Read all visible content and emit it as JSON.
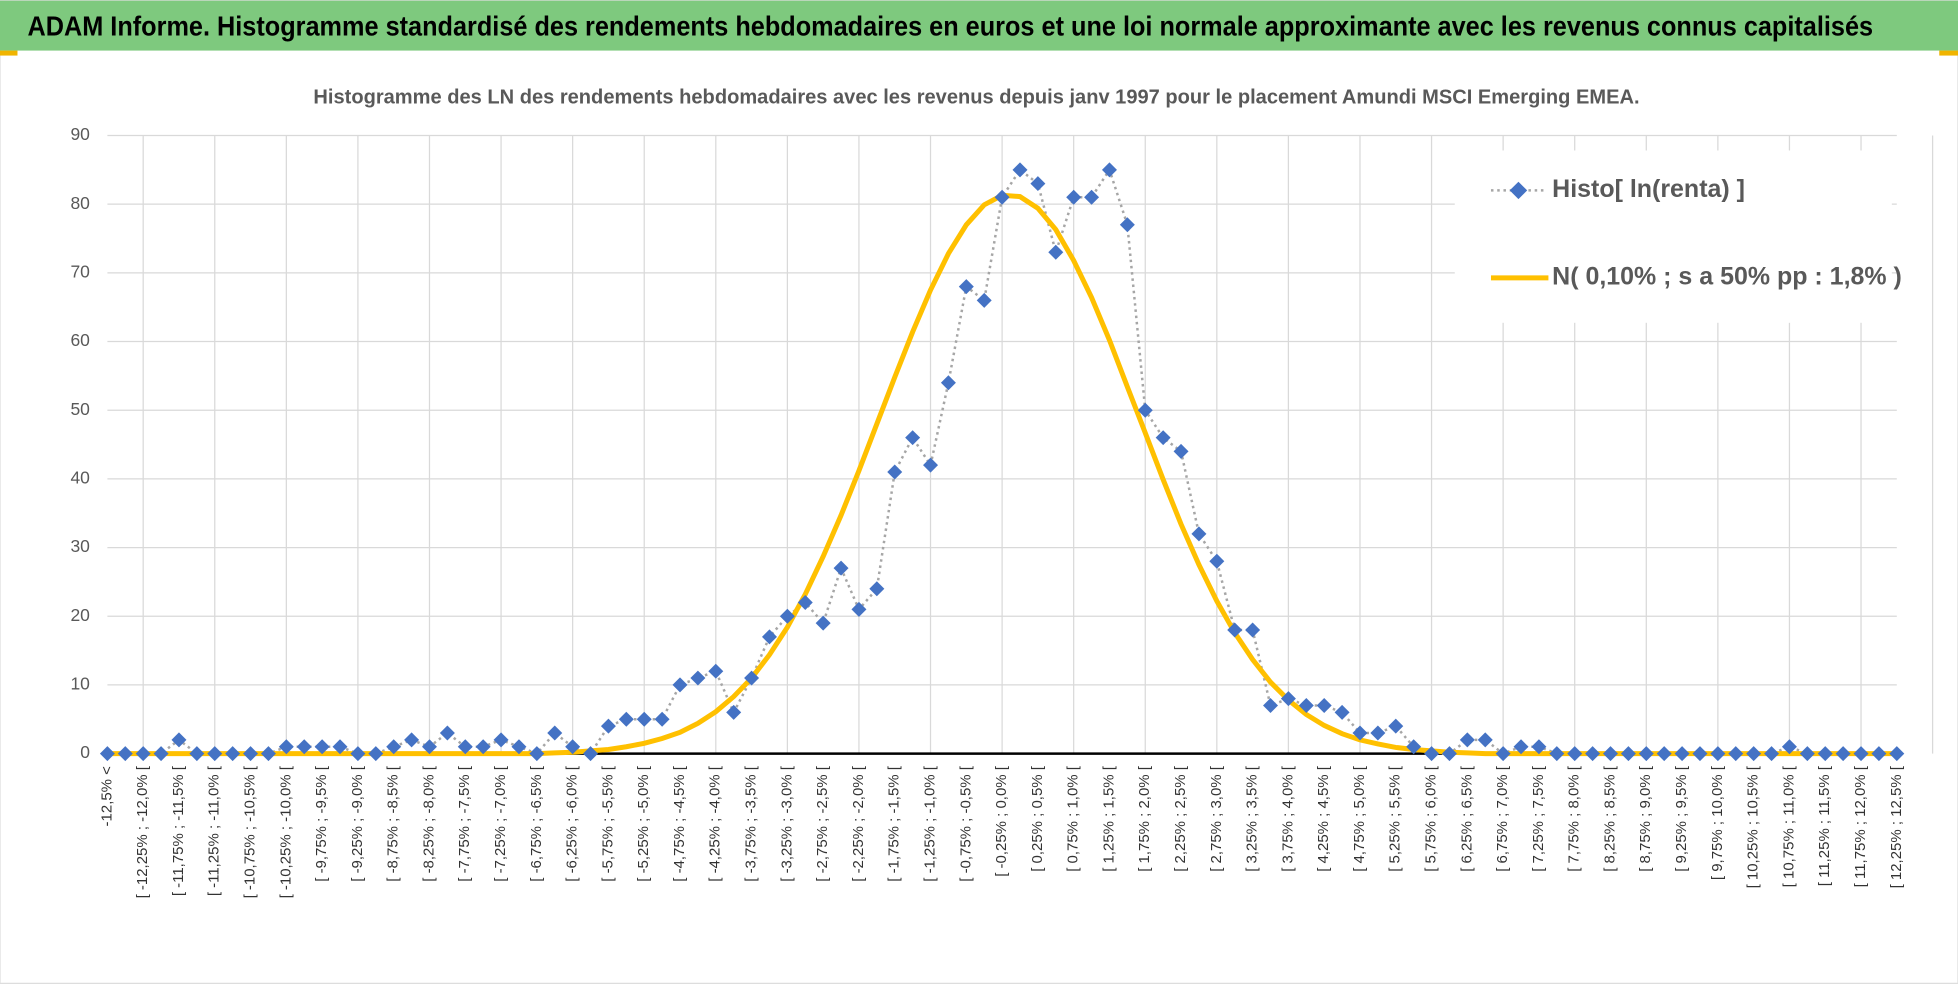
{
  "header": {
    "title": "ADAM Informe. Histogramme standardisé des rendements hebdomadaires en euros et une loi normale approximante avec les revenus connus capitalisés"
  },
  "chart_data": {
    "type": "line",
    "title": "Histogramme des LN des rendements hebdomadaires avec les revenus depuis janv 1997 pour le placement Amundi MSCI Emerging EMEA.",
    "categories": [
      "-12,5% <",
      null,
      "[ -12,25% ; -12,0% [",
      null,
      "[ -11,75% ; -11,5% [",
      null,
      "[ -11,25% ; -11,0% [",
      null,
      "[ -10,75% ; -10,5% [",
      null,
      "[ -10,25% ; -10,0% [",
      null,
      "[ -9,75% ; -9,5% [",
      null,
      "[ -9,25% ; -9,0% [",
      null,
      "[ -8,75% ; -8,5% [",
      null,
      "[ -8,25% ; -8,0% [",
      null,
      "[ -7,75% ; -7,5% [",
      null,
      "[ -7,25% ; -7,0% [",
      null,
      "[ -6,75% ; -6,5% [",
      null,
      "[ -6,25% ; -6,0% [",
      null,
      "[ -5,75% ; -5,5% [",
      null,
      "[ -5,25% ; -5,0% [",
      null,
      "[ -4,75% ; -4,5% [",
      null,
      "[ -4,25% ; -4,0% [",
      null,
      "[ -3,75% ; -3,5% [",
      null,
      "[ -3,25% ; -3,0% [",
      null,
      "[ -2,75% ; -2,5% [",
      null,
      "[ -2,25% ; -2,0% [",
      null,
      "[ -1,75% ; -1,5% [",
      null,
      "[ -1,25% ; -1,0% [",
      null,
      "[ -0,75% ; -0,5% [",
      null,
      "[ -0,25% ; 0,0% [",
      null,
      "[ 0,25% ; 0,5% [",
      null,
      "[ 0,75% ; 1,0% [",
      null,
      "[ 1,25% ; 1,5% [",
      null,
      "[ 1,75% ; 2,0% [",
      null,
      "[ 2,25% ; 2,5% [",
      null,
      "[ 2,75% ; 3,0% [",
      null,
      "[ 3,25% ; 3,5% [",
      null,
      "[ 3,75% ; 4,0% [",
      null,
      "[ 4,25% ; 4,5% [",
      null,
      "[ 4,75% ; 5,0% [",
      null,
      "[ 5,25% ; 5,5% [",
      null,
      "[ 5,75% ; 6,0% [",
      null,
      "[ 6,25% ; 6,5% [",
      null,
      "[ 6,75% ; 7,0% [",
      null,
      "[ 7,25% ; 7,5% [",
      null,
      "[ 7,75% ; 8,0% [",
      null,
      "[ 8,25% ; 8,5% [",
      null,
      "[ 8,75% ; 9,0% [",
      null,
      "[ 9,25% ; 9,5% [",
      null,
      "[ 9,75% ; 10,0% [",
      null,
      "[ 10,25% ; 10,5% [",
      null,
      "[ 10,75% ; 11,0% [",
      null,
      "[ 11,25% ; 11,5% [",
      null,
      "[ 11,75% ; 12,0% [",
      null,
      "[ 12,25% ; 12,5% ["
    ],
    "series": [
      {
        "name": "Histo[ ln(renta) ]",
        "color": "#4472c4",
        "values": [
          0,
          0,
          0,
          0,
          2,
          0,
          0,
          0,
          0,
          0,
          1,
          1,
          1,
          1,
          0,
          0,
          1,
          2,
          1,
          3,
          1,
          1,
          2,
          1,
          0,
          3,
          1,
          0,
          4,
          5,
          5,
          5,
          10,
          11,
          12,
          6,
          11,
          17,
          20,
          22,
          19,
          27,
          21,
          24,
          41,
          46,
          42,
          54,
          68,
          66,
          81,
          85,
          83,
          73,
          81,
          81,
          85,
          77,
          50,
          46,
          44,
          32,
          28,
          18,
          18,
          7,
          8,
          7,
          7,
          6,
          3,
          3,
          4,
          1,
          0,
          0,
          2,
          2,
          0,
          1,
          1,
          0,
          0,
          0,
          0,
          0,
          0,
          0,
          0,
          0,
          0,
          0,
          0,
          0,
          1,
          0,
          0,
          0,
          0,
          0,
          0
        ]
      },
      {
        "name": "N( 0,10% ; s a 50% pp : 1,8% )",
        "color": "#ffc000",
        "values": [
          0,
          0,
          0,
          0,
          0,
          0,
          0,
          0,
          0,
          0,
          0,
          0,
          0,
          0,
          0,
          0,
          0,
          0,
          0,
          0,
          0,
          0,
          0,
          0,
          0,
          0.1,
          0.2,
          0.4,
          0.6,
          1.0,
          1.5,
          2.2,
          3.1,
          4.4,
          6.1,
          8.3,
          11.0,
          14.4,
          18.4,
          23.2,
          28.7,
          34.7,
          41.2,
          48.0,
          54.8,
          61.4,
          67.5,
          72.8,
          77.0,
          79.9,
          81.3,
          81.1,
          79.4,
          76.3,
          71.8,
          66.4,
          60.2,
          53.4,
          46.7,
          39.9,
          33.4,
          27.5,
          22.2,
          17.6,
          13.7,
          10.4,
          7.8,
          5.7,
          4.1,
          2.9,
          2.0,
          1.4,
          0.9,
          0.6,
          0.4,
          0.2,
          0.1,
          0,
          0,
          0,
          0,
          0,
          0,
          0,
          0,
          0,
          0,
          0,
          0,
          0,
          0,
          0,
          0,
          0,
          0,
          0,
          0,
          0,
          0,
          0,
          0
        ]
      }
    ],
    "ylim": [
      0,
      90
    ],
    "yticks": [
      0,
      10,
      20,
      30,
      40,
      50,
      60,
      70,
      80,
      90
    ],
    "grid": true
  }
}
